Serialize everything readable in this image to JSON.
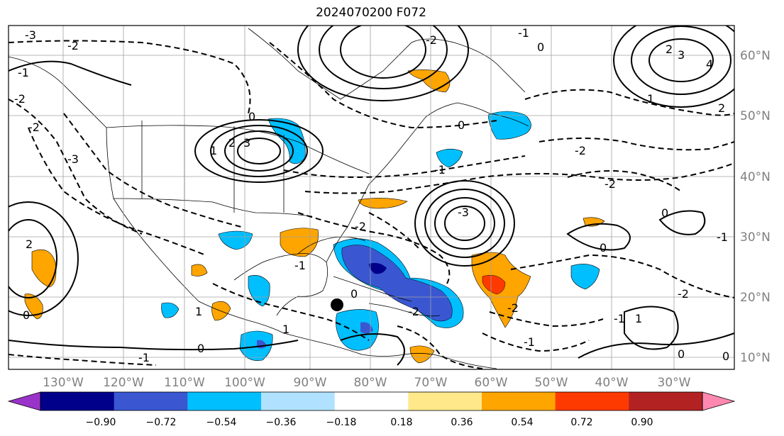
{
  "title": "2024070200 F072",
  "longitude_labels": [
    "130°W",
    "120°W",
    "110°W",
    "100°W",
    "90°W",
    "80°W",
    "70°W",
    "60°W",
    "50°W",
    "40°W",
    "30°W"
  ],
  "latitude_labels": [
    "60°N",
    "50°N",
    "40°N",
    "30°N",
    "20°N",
    "10°N"
  ],
  "colorbar": {
    "labels": [
      "−0.90",
      "−0.72",
      "−0.54",
      "−0.36",
      "−0.18",
      "0.18",
      "0.36",
      "0.54",
      "0.72",
      "0.90"
    ],
    "colors": [
      "#9a33c9",
      "#00008b",
      "#3a57d1",
      "#00bfff",
      "#b0e2ff",
      "#ffffff",
      "#ffe88a",
      "#ffa500",
      "#ff3a00",
      "#b22222",
      "#ff88b0"
    ]
  },
  "contour_labels": [
    "3",
    "2",
    "1",
    "0",
    "0",
    "-1",
    "-2",
    "-2",
    "-3",
    "-3",
    "-3",
    "-2",
    "-1",
    "0",
    "1",
    "2",
    "-2",
    "-2",
    "-1",
    "-1",
    "-2",
    "-2",
    "2",
    "3",
    "4",
    "-1",
    "0",
    "1",
    "2",
    "-1",
    "0",
    "-2",
    "0",
    "0",
    "-1",
    "0",
    "1",
    "0",
    "-2",
    "-1",
    "1",
    "-2",
    "0"
  ],
  "colors": {
    "map_border": "#000000",
    "gridline": "#a0a0a0",
    "contour": "#000000",
    "marker": "#000000"
  }
}
